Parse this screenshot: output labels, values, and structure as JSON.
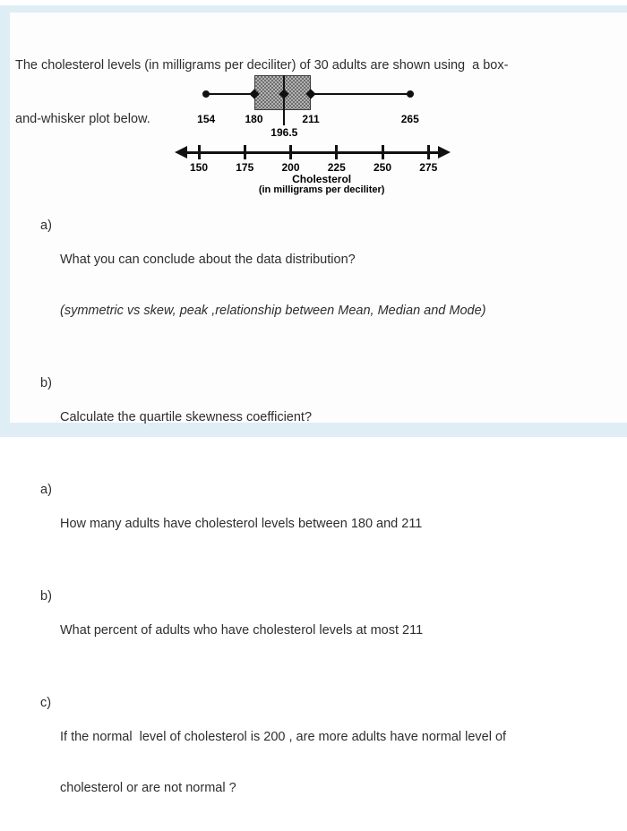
{
  "intro": {
    "lines": [
      "The cholesterol levels (in milligrams per deciliter) of 30 adults are shown using  a box-",
      "and-whisker plot below."
    ]
  },
  "chart_data": {
    "type": "boxplot",
    "title": "",
    "xlabel": "Cholesterol",
    "xlabel_sub": "(in milligrams per deciliter)",
    "orientation": "horizontal",
    "axis": {
      "min": 150,
      "max": 275,
      "tick_step": 25,
      "ticks": [
        150,
        175,
        200,
        225,
        250,
        275
      ],
      "arrows": "both"
    },
    "stats": {
      "min": 154,
      "q1": 180,
      "median": 196.5,
      "q3": 211,
      "max": 265
    },
    "point_labels": [
      "154",
      "180",
      "196.5",
      "211",
      "265"
    ],
    "n": 30,
    "box_fill": "#a8a8a8",
    "line_color": "#111111"
  },
  "questions": [
    {
      "label": "a)",
      "lines": [
        "What you can conclude about the data distribution?",
        "(symmetric vs skew, peak ,relationship between Mean, Median and Mode)"
      ]
    },
    {
      "label": "b)",
      "lines": [
        "Calculate the quartile skewness coefficient?"
      ]
    },
    {
      "label": "a)",
      "lines": [
        "How many adults have cholesterol levels between 180 and 211"
      ]
    },
    {
      "label": "b)",
      "lines": [
        "What percent of adults who have cholesterol levels at most 211"
      ]
    },
    {
      "label": "c)",
      "lines": [
        "If the normal  level of cholesterol is 200 , are more adults have normal level of",
        "cholesterol or are not normal ?"
      ]
    }
  ]
}
